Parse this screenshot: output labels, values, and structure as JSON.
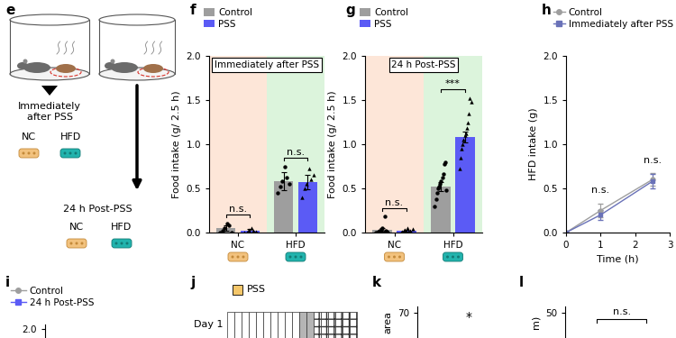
{
  "diagram": {
    "panel": "e",
    "conditions": [
      {
        "label": "Immediately\nafter PSS",
        "foods": [
          "NC",
          "HFD"
        ]
      },
      {
        "label": "24 h Post-PSS",
        "foods": [
          "NC",
          "HFD"
        ]
      }
    ]
  },
  "timeline": {
    "panel": "j",
    "legend": "PSS",
    "rows": [
      "Day 1"
    ]
  },
  "chart_data": [
    {
      "panel": "f",
      "type": "bar",
      "title": "Immediately after PSS",
      "ylabel": "Food intake (g/ 2.5 h)",
      "categories": [
        "NC",
        "HFD"
      ],
      "series": [
        {
          "name": "Control",
          "color": "#9e9e9e",
          "marker": "circle",
          "values": [
            0.05,
            0.58
          ],
          "errors": [
            0.03,
            0.1
          ],
          "points": [
            [
              0.0,
              0.02,
              0.05,
              0.1,
              0.08,
              0.0
            ],
            [
              0.45,
              0.52,
              0.58,
              0.75,
              0.62,
              0.55
            ]
          ]
        },
        {
          "name": "PSS",
          "color": "#5b5bf5",
          "marker": "triangle",
          "values": [
            0.02,
            0.57
          ],
          "errors": [
            0.02,
            0.08
          ],
          "points": [
            [
              0.0,
              0.0,
              0.03,
              0.05,
              0.02,
              0.01
            ],
            [
              0.4,
              0.5,
              0.55,
              0.72,
              0.6,
              0.65
            ]
          ]
        }
      ],
      "significance": [
        {
          "category": "NC",
          "label": "n.s."
        },
        {
          "category": "HFD",
          "label": "n.s."
        }
      ],
      "ylim": [
        0,
        2.0
      ],
      "yticks": [
        {
          "value": 0,
          "label": "0.0"
        },
        {
          "value": 0.5,
          "label": "0.5"
        },
        {
          "value": 1.0,
          "label": "1.0"
        },
        {
          "value": 1.5,
          "label": "1.5"
        },
        {
          "value": 2.0,
          "label": "2.0"
        }
      ],
      "legend": "upper left"
    },
    {
      "panel": "g",
      "type": "bar",
      "title": "24 h Post-PSS",
      "ylabel": "Food intake (g/ 2.5 h)",
      "categories": [
        "NC",
        "HFD"
      ],
      "series": [
        {
          "name": "Control",
          "color": "#9e9e9e",
          "marker": "circle",
          "values": [
            0.03,
            0.52
          ],
          "errors": [
            0.02,
            0.05
          ],
          "points": [
            [
              0.0,
              0.0,
              0.01,
              0.02,
              0.0,
              0.03,
              0.05,
              0.0,
              0.18,
              0.02,
              0.01,
              0.0
            ],
            [
              0.3,
              0.38,
              0.45,
              0.5,
              0.52,
              0.55,
              0.58,
              0.62,
              0.66,
              0.78,
              0.8,
              0.48
            ]
          ]
        },
        {
          "name": "PSS",
          "color": "#5b5bf5",
          "marker": "triangle",
          "values": [
            0.02,
            1.08
          ],
          "errors": [
            0.01,
            0.06
          ],
          "points": [
            [
              0.0,
              0.01,
              0.0,
              0.02,
              0.03,
              0.0,
              0.05,
              0.01,
              0.0,
              0.02,
              0.0,
              0.04
            ],
            [
              0.72,
              0.85,
              0.95,
              1.0,
              1.05,
              1.1,
              1.12,
              1.18,
              1.25,
              1.35,
              1.52,
              1.48
            ]
          ]
        }
      ],
      "significance": [
        {
          "category": "NC",
          "label": "n.s."
        },
        {
          "category": "HFD",
          "label": "***"
        }
      ],
      "ylim": [
        0,
        2.0
      ],
      "yticks": [
        {
          "value": 0,
          "label": "0.0"
        },
        {
          "value": 0.5,
          "label": "0.5"
        },
        {
          "value": 1.0,
          "label": "1.0"
        },
        {
          "value": 1.5,
          "label": "1.5"
        },
        {
          "value": 2.0,
          "label": "2.0"
        }
      ],
      "legend": "upper left"
    },
    {
      "panel": "h",
      "type": "line",
      "xlabel": "Time (h)",
      "ylabel": "HFD intake (g)",
      "x": [
        0,
        1,
        2.5
      ],
      "series": [
        {
          "name": "Control",
          "color": "#9e9e9e",
          "marker": "circle",
          "values": [
            0,
            0.25,
            0.6
          ],
          "errors": [
            0,
            0.08,
            0.07
          ]
        },
        {
          "name": "Immediately after PSS",
          "color": "#6a72b8",
          "marker": "square",
          "values": [
            0,
            0.2,
            0.58
          ],
          "errors": [
            0,
            0.06,
            0.08
          ]
        }
      ],
      "annotations": [
        {
          "x": 1,
          "label": "n.s."
        },
        {
          "x": 2.5,
          "label": "n.s."
        }
      ],
      "xlim": [
        0,
        3
      ],
      "xticks": [
        0,
        1,
        2,
        3
      ],
      "ylim": [
        0,
        2.0
      ],
      "yticks": [
        {
          "value": 0,
          "label": "0.0"
        },
        {
          "value": 0.5,
          "label": "0.5"
        },
        {
          "value": 1.0,
          "label": "1.0"
        },
        {
          "value": 1.5,
          "label": "1.5"
        },
        {
          "value": 2.0,
          "label": "2.0"
        }
      ],
      "legend": "upper left"
    },
    {
      "panel": "i",
      "type": "line",
      "x": [],
      "series": [
        {
          "name": "Control",
          "color": "#9e9e9e",
          "marker": "circle",
          "values": []
        },
        {
          "name": "24 h Post-PSS",
          "color": "#5b5bf5",
          "marker": "square",
          "values": []
        }
      ],
      "ylim": [
        1.7,
        2.15
      ],
      "yticks": [
        {
          "value": 2.0,
          "label": "2.0"
        }
      ],
      "legend": "upper left"
    },
    {
      "panel": "k",
      "type": "bar",
      "ylabel": "area",
      "ylim": [
        60,
        72.5
      ],
      "yticks": [
        70
      ],
      "annotations": [
        {
          "label": "*"
        }
      ]
    },
    {
      "panel": "l",
      "type": "bar",
      "ylabel": "m)",
      "ylim": [
        40,
        52.5
      ],
      "yticks": [
        50
      ],
      "annotations": [
        {
          "label": "n.s."
        }
      ]
    }
  ]
}
